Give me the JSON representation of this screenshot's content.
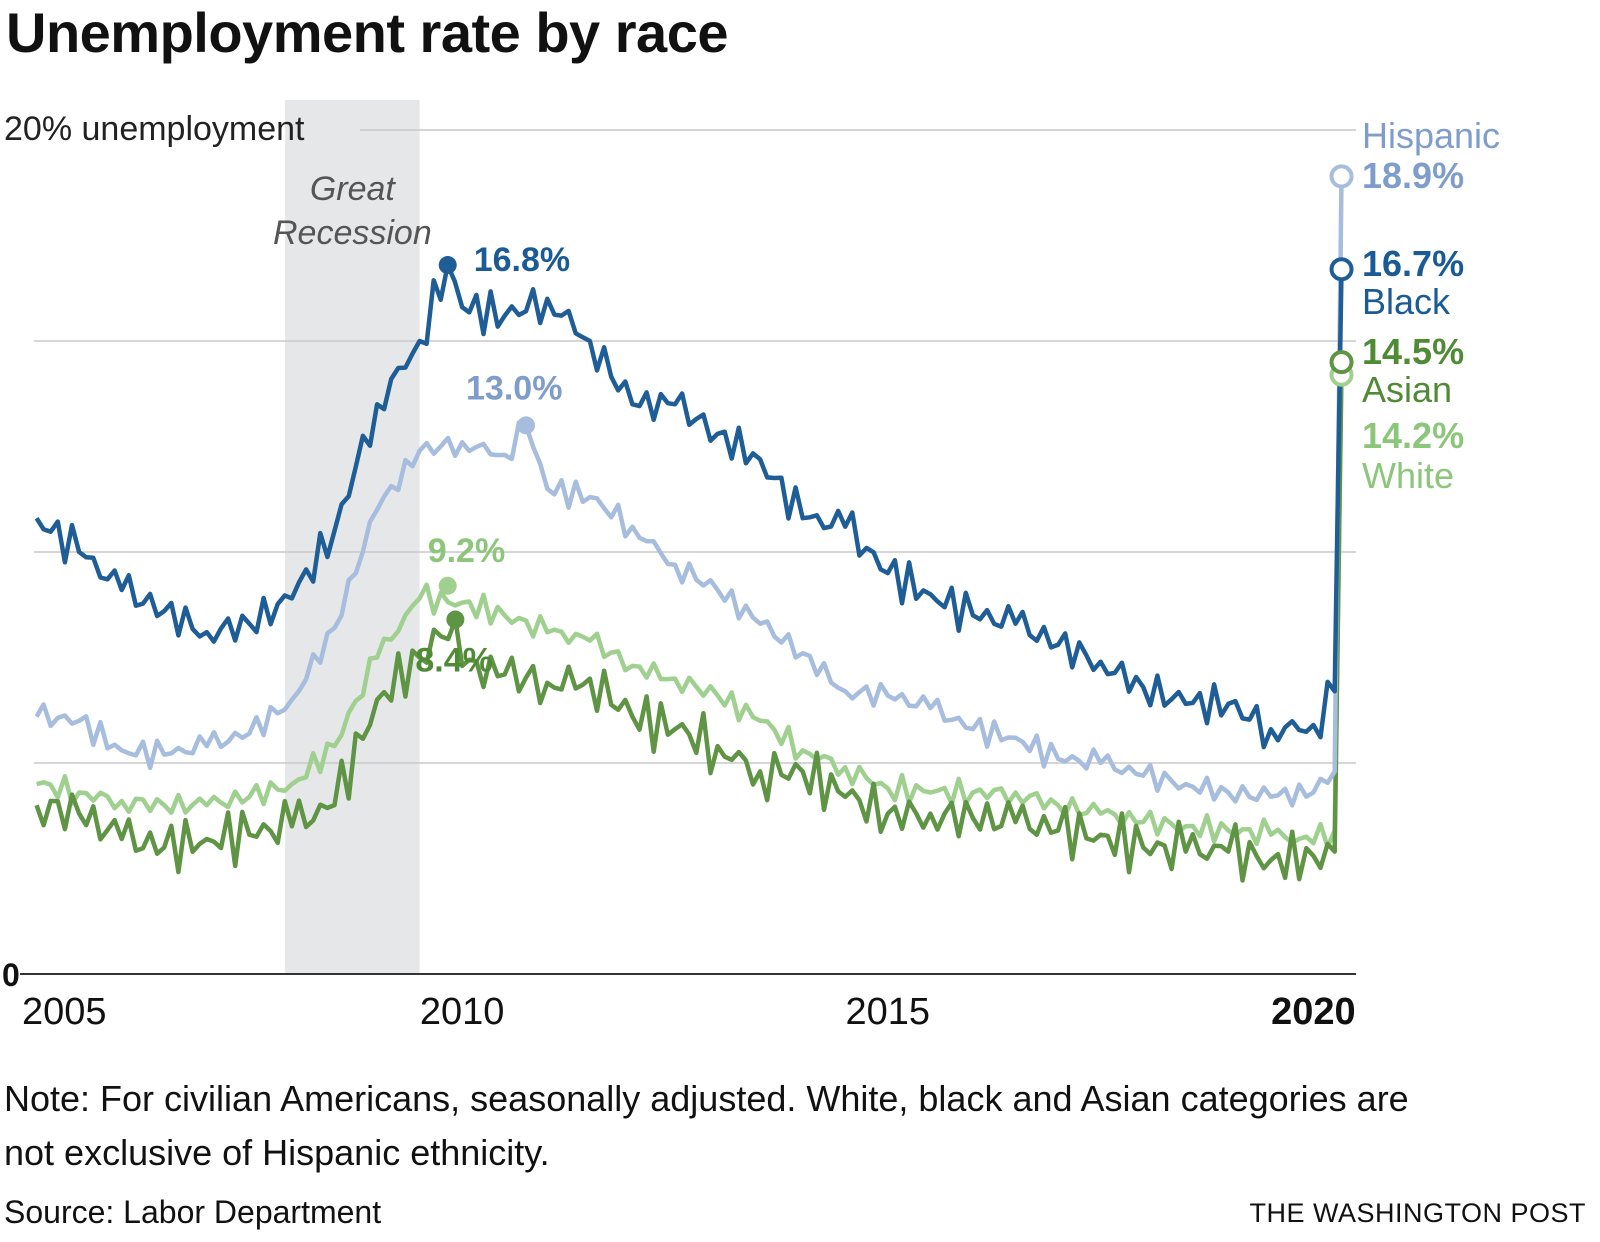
{
  "chart_data": {
    "type": "line",
    "title": "Unemployment rate by race",
    "y_top_label": "20% unemployment",
    "y_zero_label": "0",
    "ylim": [
      0,
      20
    ],
    "gridlines": [
      0,
      5,
      10,
      15,
      20
    ],
    "xlim": [
      2004.97,
      2020.5
    ],
    "x_ticks": [
      {
        "value": 2005,
        "label": "2005",
        "bold": false
      },
      {
        "value": 2010,
        "label": "2010",
        "bold": false
      },
      {
        "value": 2015,
        "label": "2015",
        "bold": false
      },
      {
        "value": 2020,
        "label": "2020",
        "bold": true
      }
    ],
    "recession": {
      "start": 2007.92,
      "end": 2009.5,
      "label_line1": "Great",
      "label_line2": "Recession"
    },
    "series": [
      {
        "name": "White",
        "key": "white",
        "color": "#9fd08f",
        "label_color": "#8cc67b",
        "end_value_label": "14.2%",
        "end_value": 14.2,
        "points": [
          [
            2005.0,
            4.5
          ],
          [
            2005.5,
            4.3
          ],
          [
            2006.0,
            4.1
          ],
          [
            2006.5,
            4.0
          ],
          [
            2007.0,
            4.0
          ],
          [
            2007.5,
            4.2
          ],
          [
            2008.0,
            4.5
          ],
          [
            2008.5,
            5.4
          ],
          [
            2009.0,
            7.5
          ],
          [
            2009.5,
            8.9
          ],
          [
            2010.0,
            8.8
          ],
          [
            2010.5,
            8.5
          ],
          [
            2011.0,
            8.1
          ],
          [
            2011.5,
            7.9
          ],
          [
            2012.0,
            7.3
          ],
          [
            2012.5,
            7.0
          ],
          [
            2013.0,
            6.6
          ],
          [
            2013.5,
            6.0
          ],
          [
            2014.0,
            5.3
          ],
          [
            2014.5,
            4.9
          ],
          [
            2015.0,
            4.4
          ],
          [
            2015.5,
            4.3
          ],
          [
            2016.0,
            4.3
          ],
          [
            2016.5,
            4.3
          ],
          [
            2017.0,
            4.0
          ],
          [
            2017.5,
            3.8
          ],
          [
            2018.0,
            3.6
          ],
          [
            2018.5,
            3.5
          ],
          [
            2019.0,
            3.4
          ],
          [
            2019.5,
            3.3
          ],
          [
            2020.0,
            3.1
          ],
          [
            2020.25,
            3.4
          ],
          [
            2020.33,
            14.2
          ]
        ],
        "peak": {
          "x": 2009.83,
          "y": 9.2,
          "label": "9.2%"
        }
      },
      {
        "name": "Asian",
        "key": "asian",
        "color": "#5f9444",
        "label_color": "#4f8a34",
        "end_value_label": "14.5%",
        "end_value": 14.5,
        "points": [
          [
            2005.0,
            4.0
          ],
          [
            2005.5,
            3.8
          ],
          [
            2006.0,
            3.2
          ],
          [
            2006.5,
            3.0
          ],
          [
            2007.0,
            3.2
          ],
          [
            2007.5,
            3.3
          ],
          [
            2008.0,
            3.5
          ],
          [
            2008.5,
            4.0
          ],
          [
            2009.0,
            6.5
          ],
          [
            2009.5,
            7.5
          ],
          [
            2009.92,
            8.4
          ],
          [
            2010.0,
            7.3
          ],
          [
            2010.5,
            7.1
          ],
          [
            2011.0,
            6.9
          ],
          [
            2011.5,
            7.0
          ],
          [
            2012.0,
            6.1
          ],
          [
            2012.5,
            5.8
          ],
          [
            2013.0,
            5.4
          ],
          [
            2013.5,
            4.8
          ],
          [
            2014.0,
            4.8
          ],
          [
            2014.5,
            4.2
          ],
          [
            2015.0,
            3.8
          ],
          [
            2015.5,
            3.8
          ],
          [
            2016.0,
            3.7
          ],
          [
            2016.5,
            3.6
          ],
          [
            2017.0,
            3.4
          ],
          [
            2017.5,
            3.3
          ],
          [
            2018.0,
            3.0
          ],
          [
            2018.5,
            2.9
          ],
          [
            2019.0,
            2.9
          ],
          [
            2019.5,
            2.7
          ],
          [
            2020.0,
            2.8
          ],
          [
            2020.25,
            2.9
          ],
          [
            2020.33,
            14.5
          ]
        ],
        "peak": {
          "x": 2009.92,
          "y": 8.4,
          "label": "8.4%"
        }
      },
      {
        "name": "Hispanic",
        "key": "hispanic",
        "color": "#a7bddd",
        "label_color": "#7f9dcb",
        "end_value_label": "18.9%",
        "end_value": 18.9,
        "points": [
          [
            2005.0,
            6.1
          ],
          [
            2005.5,
            6.0
          ],
          [
            2006.0,
            5.3
          ],
          [
            2006.5,
            5.2
          ],
          [
            2007.0,
            5.4
          ],
          [
            2007.5,
            5.7
          ],
          [
            2008.0,
            6.5
          ],
          [
            2008.5,
            8.2
          ],
          [
            2009.0,
            11.0
          ],
          [
            2009.5,
            12.4
          ],
          [
            2010.0,
            12.6
          ],
          [
            2010.5,
            12.3
          ],
          [
            2010.75,
            13.0
          ],
          [
            2011.0,
            11.5
          ],
          [
            2011.5,
            11.3
          ],
          [
            2012.0,
            10.6
          ],
          [
            2012.5,
            9.7
          ],
          [
            2013.0,
            9.1
          ],
          [
            2013.5,
            8.3
          ],
          [
            2014.0,
            7.6
          ],
          [
            2014.5,
            6.7
          ],
          [
            2015.0,
            6.6
          ],
          [
            2015.5,
            6.3
          ],
          [
            2016.0,
            5.8
          ],
          [
            2016.5,
            5.6
          ],
          [
            2017.0,
            5.1
          ],
          [
            2017.5,
            5.0
          ],
          [
            2018.0,
            4.7
          ],
          [
            2018.5,
            4.5
          ],
          [
            2019.0,
            4.3
          ],
          [
            2019.5,
            4.2
          ],
          [
            2020.0,
            4.3
          ],
          [
            2020.25,
            4.8
          ],
          [
            2020.33,
            18.9
          ]
        ],
        "peak": {
          "x": 2010.75,
          "y": 13.0,
          "label": "13.0%"
        }
      },
      {
        "name": "Black",
        "key": "black",
        "color": "#1f5d96",
        "label_color": "#1a5a95",
        "end_value_label": "16.7%",
        "end_value": 16.7,
        "points": [
          [
            2005.0,
            10.8
          ],
          [
            2005.5,
            10.0
          ],
          [
            2006.0,
            9.1
          ],
          [
            2006.5,
            8.6
          ],
          [
            2007.0,
            8.1
          ],
          [
            2007.5,
            8.3
          ],
          [
            2008.0,
            8.9
          ],
          [
            2008.5,
            10.5
          ],
          [
            2009.0,
            13.5
          ],
          [
            2009.5,
            15.0
          ],
          [
            2009.83,
            16.8
          ],
          [
            2010.0,
            15.8
          ],
          [
            2010.5,
            15.6
          ],
          [
            2011.0,
            16.0
          ],
          [
            2011.5,
            15.0
          ],
          [
            2012.0,
            13.5
          ],
          [
            2012.5,
            13.5
          ],
          [
            2013.0,
            12.8
          ],
          [
            2013.5,
            12.2
          ],
          [
            2014.0,
            10.8
          ],
          [
            2014.5,
            10.6
          ],
          [
            2015.0,
            9.5
          ],
          [
            2015.5,
            9.0
          ],
          [
            2016.0,
            8.5
          ],
          [
            2016.5,
            8.3
          ],
          [
            2017.0,
            7.8
          ],
          [
            2017.5,
            7.4
          ],
          [
            2018.0,
            6.8
          ],
          [
            2018.5,
            6.4
          ],
          [
            2019.0,
            6.4
          ],
          [
            2019.5,
            5.8
          ],
          [
            2020.0,
            5.9
          ],
          [
            2020.25,
            6.7
          ],
          [
            2020.33,
            16.7
          ]
        ],
        "peak": {
          "x": 2009.83,
          "y": 16.8,
          "label": "16.8%"
        }
      }
    ]
  },
  "note": "Note: For civilian Americans, seasonally adjusted. White, black and Asian categories are not exclusive of Hispanic ethnicity.",
  "source": "Source: Labor Department",
  "credit": "THE WASHINGTON POST"
}
